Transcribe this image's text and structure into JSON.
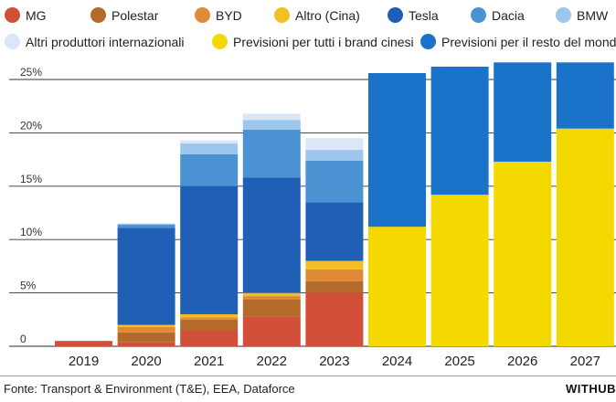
{
  "chart_data": {
    "type": "bar",
    "stacked": true,
    "categories": [
      "2019",
      "2020",
      "2021",
      "2022",
      "2023",
      "2024",
      "2025",
      "2026",
      "2027"
    ],
    "y_ticks": [
      "0",
      "5%",
      "10%",
      "15%",
      "20%",
      "25%"
    ],
    "ylim": [
      0,
      27
    ],
    "grid": true,
    "legend_placement": "top",
    "series": [
      {
        "name": "MG",
        "color": "#d2503a",
        "values": [
          0.5,
          0.4,
          1.5,
          2.8,
          5.0,
          0,
          0,
          0,
          0
        ]
      },
      {
        "name": "Polestar",
        "color": "#b36a2a",
        "values": [
          0,
          0.9,
          1.0,
          1.6,
          1.1,
          0,
          0,
          0,
          0
        ]
      },
      {
        "name": "BYD",
        "color": "#e08a35",
        "values": [
          0,
          0.5,
          0.2,
          0.3,
          1.1,
          0,
          0,
          0,
          0
        ]
      },
      {
        "name": "Altro (Cina)",
        "color": "#f0c024",
        "values": [
          0,
          0.2,
          0.3,
          0.3,
          0.8,
          0,
          0,
          0,
          0
        ]
      },
      {
        "name": "Tesla",
        "color": "#1f5fb5",
        "values": [
          0,
          9.1,
          12.0,
          10.8,
          5.5,
          0,
          0,
          0,
          0
        ]
      },
      {
        "name": "Dacia",
        "color": "#4b92d3",
        "values": [
          0,
          0.3,
          3.0,
          4.5,
          3.9,
          0,
          0,
          0,
          0
        ]
      },
      {
        "name": "BMW",
        "color": "#9cc6ec",
        "values": [
          0,
          0.1,
          1.0,
          0.9,
          1.0,
          0,
          0,
          0,
          0
        ]
      },
      {
        "name": "Altri produttori internazionali",
        "color": "#dbe6f6",
        "values": [
          0,
          0,
          0.3,
          0.6,
          1.1,
          0,
          0,
          0,
          0
        ]
      },
      {
        "name": "Previsioni per tutti i brand cinesi",
        "color": "#f4d900",
        "values": [
          0,
          0,
          0,
          0,
          0,
          11.2,
          14.2,
          17.3,
          20.4
        ]
      },
      {
        "name": "Previsioni per il resto del mondo",
        "color": "#1a72c9",
        "values": [
          0,
          0,
          0,
          0,
          0,
          14.4,
          12.0,
          9.3,
          6.2
        ]
      }
    ]
  },
  "source": "Fonte: Transport & Environment (T&E), EEA, Dataforce",
  "brand": "WITHUB"
}
